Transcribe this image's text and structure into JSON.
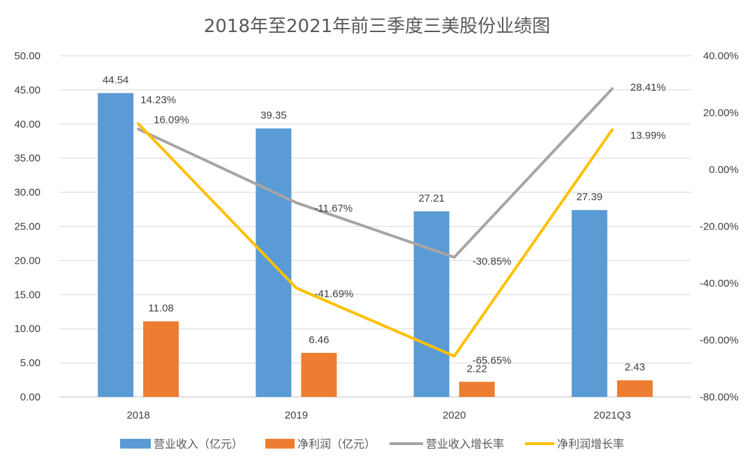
{
  "chart_data": {
    "type": "bar",
    "title": "2018年至2021年前三季度三美股份业绩图",
    "categories": [
      "2018",
      "2019",
      "2020",
      "2021Q3"
    ],
    "series": [
      {
        "name": "营业收入（亿元）",
        "kind": "bar",
        "axis": "left",
        "color": "#5B9BD5",
        "values": [
          44.54,
          39.35,
          27.21,
          27.39
        ],
        "labels": [
          "44.54",
          "39.35",
          "27.21",
          "27.39"
        ]
      },
      {
        "name": "净利润（亿元）",
        "kind": "bar",
        "axis": "left",
        "color": "#ED7D31",
        "values": [
          11.08,
          6.46,
          2.22,
          2.43
        ],
        "labels": [
          "11.08",
          "6.46",
          "2.22",
          "2.43"
        ]
      },
      {
        "name": "营业收入增长率",
        "kind": "line",
        "axis": "right",
        "color": "#A5A5A5",
        "values": [
          14.23,
          -11.67,
          -30.85,
          28.41
        ],
        "labels": [
          "14.23%",
          "-11.67%",
          "-30.85%",
          "28.41%"
        ]
      },
      {
        "name": "净利润增长率",
        "kind": "line",
        "axis": "right",
        "color": "#FFC000",
        "values": [
          16.09,
          -41.69,
          -65.65,
          13.99
        ],
        "labels": [
          "16.09%",
          "-41.69%",
          "-65.65%",
          "13.99%"
        ]
      }
    ],
    "left_axis": {
      "ylim": [
        0,
        50
      ],
      "ticks": [
        0,
        5,
        10,
        15,
        20,
        25,
        30,
        35,
        40,
        45,
        50
      ],
      "tick_labels": [
        "0.00",
        "5.00",
        "10.00",
        "15.00",
        "20.00",
        "25.00",
        "30.00",
        "35.00",
        "40.00",
        "45.00",
        "50.00"
      ]
    },
    "right_axis": {
      "ylim": [
        -80,
        40
      ],
      "ticks": [
        -80,
        -60,
        -40,
        -20,
        0,
        20,
        40
      ],
      "tick_labels": [
        "-80.00%",
        "-60.00%",
        "-40.00%",
        "-20.00%",
        "0.00%",
        "20.00%",
        "40.00%"
      ]
    },
    "grid": true,
    "legend": "bottom"
  }
}
